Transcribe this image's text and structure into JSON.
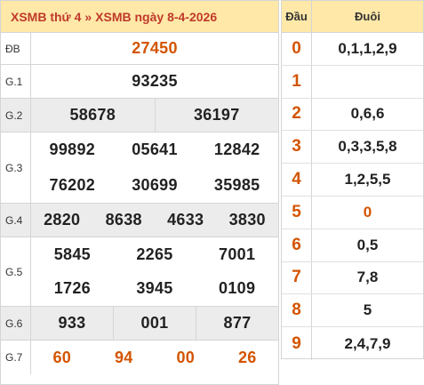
{
  "header": {
    "title_part1": "XSMB thứ 4",
    "separator": "»",
    "title_part2": "XSMB ngày 8-4-2026"
  },
  "prizes": {
    "db": {
      "label": "ĐB",
      "numbers": [
        "27450"
      ]
    },
    "g1": {
      "label": "G.1",
      "numbers": [
        "93235"
      ]
    },
    "g2": {
      "label": "G.2",
      "numbers": [
        "58678",
        "36197"
      ]
    },
    "g3": {
      "label": "G.3",
      "numbers": [
        "99892",
        "05641",
        "12842",
        "76202",
        "30699",
        "35985"
      ]
    },
    "g4": {
      "label": "G.4",
      "numbers": [
        "2820",
        "8638",
        "4633",
        "3830"
      ]
    },
    "g5": {
      "label": "G.5",
      "numbers": [
        "5845",
        "2265",
        "7001",
        "1726",
        "3945",
        "0109"
      ]
    },
    "g6": {
      "label": "G.6",
      "numbers": [
        "933",
        "001",
        "877"
      ]
    },
    "g7": {
      "label": "G.7",
      "numbers": [
        "60",
        "94",
        "00",
        "26"
      ]
    }
  },
  "dau_duoi": {
    "head_label": "Đầu",
    "tail_label": "Đuôi",
    "rows": [
      {
        "dau": "0",
        "duoi": "0,1,1,2,9"
      },
      {
        "dau": "1",
        "duoi": ""
      },
      {
        "dau": "2",
        "duoi": "0,6,6"
      },
      {
        "dau": "3",
        "duoi": "0,3,3,5,8"
      },
      {
        "dau": "4",
        "duoi": "1,2,5,5"
      },
      {
        "dau": "5",
        "duoi": "0"
      },
      {
        "dau": "6",
        "duoi": "0,5"
      },
      {
        "dau": "7",
        "duoi": "7,8"
      },
      {
        "dau": "8",
        "duoi": "5"
      },
      {
        "dau": "9",
        "duoi": "2,4,7,9"
      }
    ]
  },
  "colors": {
    "accent": "#d35400",
    "header_bg": "#ffe8a8",
    "alt_row_bg": "#ececec"
  }
}
